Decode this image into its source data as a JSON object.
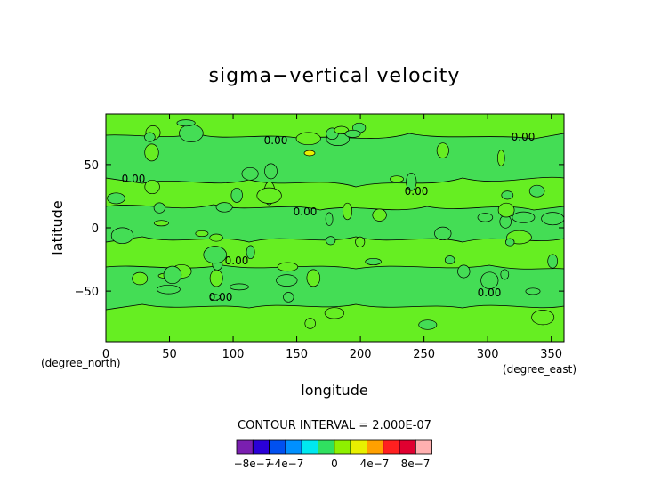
{
  "chart_data": {
    "type": "heatmap",
    "title": "sigma−vertical velocity",
    "xlabel": "longitude",
    "ylabel": "latitude",
    "x_units": "(degree_east)",
    "y_units": "(degree_north)",
    "xlim": [
      0,
      360
    ],
    "ylim": [
      -90,
      90
    ],
    "x_ticks": [
      0,
      50,
      100,
      150,
      200,
      250,
      300,
      350
    ],
    "y_ticks": [
      -50,
      0,
      50
    ],
    "contour_interval_text": "CONTOUR INTERVAL = 2.000E-07",
    "contour_labels": [
      "0.00",
      "0.00",
      "0.00",
      "0.00",
      "0.00",
      "0.00",
      "0.00",
      "0.00"
    ],
    "colorbar": {
      "colors": [
        "#7a1fb0",
        "#2a00d8",
        "#0050f0",
        "#0090ff",
        "#00e8f0",
        "#30e060",
        "#8ef000",
        "#e8f000",
        "#ffa000",
        "#ff2020",
        "#e00030",
        "#ffb0b0"
      ],
      "labels": [
        "−8e−7",
        "−4e−7",
        "0",
        "4e−7",
        "8e−7"
      ]
    },
    "field_colors": {
      "background": "#66ee22",
      "region": "#44dd55"
    }
  }
}
